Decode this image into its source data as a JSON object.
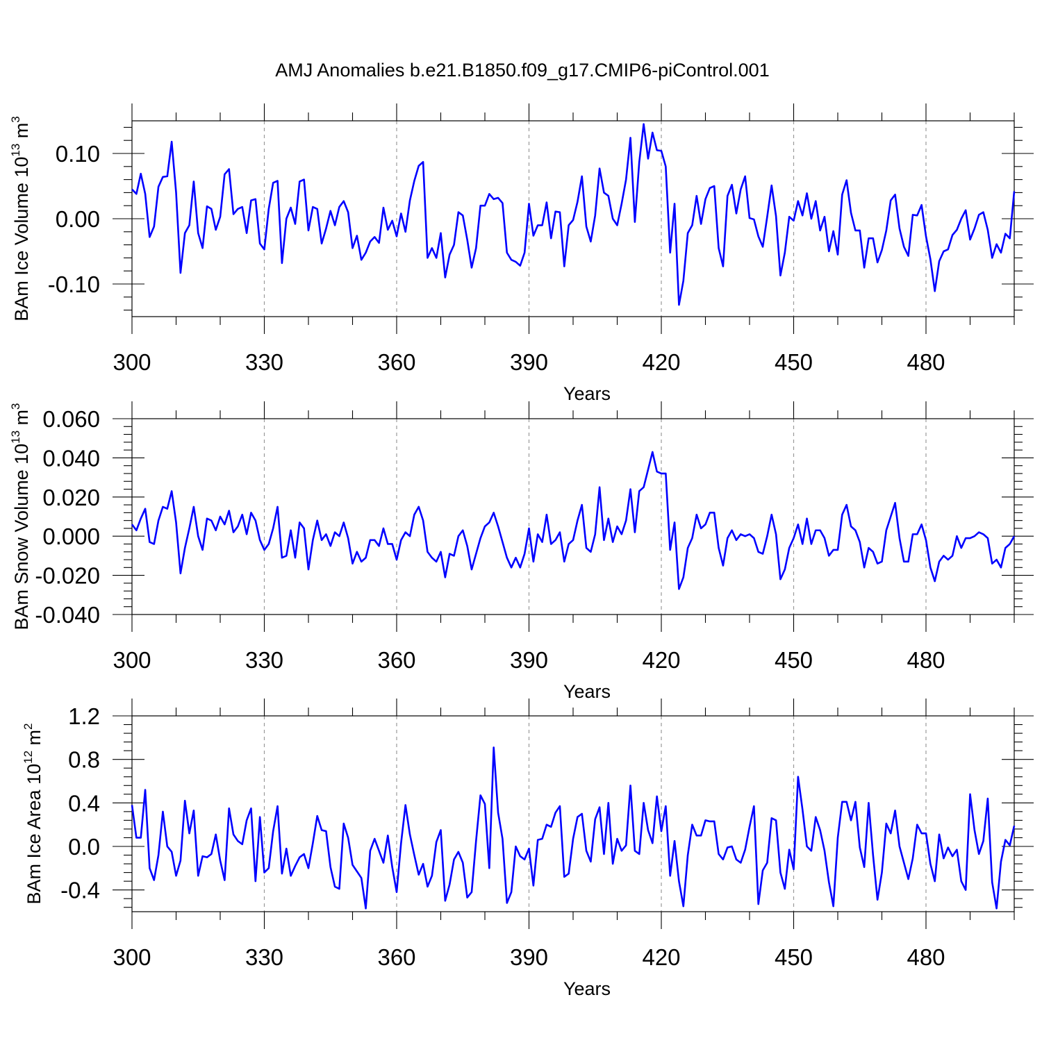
{
  "title": "AMJ Anomalies b.e21.B1850.f09_g17.CMIP6-piControl.001",
  "style": {
    "line_color": "#0000ff",
    "axis_color": "#000000",
    "grid_color": "#999999"
  },
  "chart_data": [
    {
      "type": "line",
      "name_text": "BAm Ice Volume 10",
      "ylabel_base": "BAm Ice Volume 10",
      "ylabel_exp": "13",
      "ylabel_unit": "m",
      "ylabel_unit_exp": "3",
      "xlabel": "Years",
      "xlim": [
        300,
        500
      ],
      "ylim": [
        -0.15,
        0.15
      ],
      "xticks": [
        300,
        330,
        360,
        390,
        420,
        450,
        480
      ],
      "xtick_labels": [
        "300",
        "330",
        "360",
        "390",
        "420",
        "450",
        "480"
      ],
      "yticks": [
        -0.1,
        0.0,
        0.1
      ],
      "ytick_labels": [
        "-0.10",
        "0.00",
        "0.10"
      ],
      "grid": "vertical dashed at major x ticks",
      "series": [
        {
          "x_start": 300,
          "values": [
            0.045,
            0.038,
            0.069,
            0.038,
            -0.028,
            -0.012,
            0.049,
            0.064,
            0.065,
            0.118,
            0.04,
            -0.083,
            -0.022,
            -0.01,
            0.057,
            -0.022,
            -0.045,
            0.019,
            0.015,
            -0.017,
            0.003,
            0.068,
            0.076,
            0.007,
            0.015,
            0.018,
            -0.022,
            0.028,
            0.03,
            -0.038,
            -0.047,
            0.015,
            0.055,
            0.058,
            -0.068,
            0.0,
            0.017,
            -0.008,
            0.057,
            0.06,
            -0.018,
            0.018,
            0.015,
            -0.038,
            -0.015,
            0.012,
            -0.01,
            0.018,
            0.027,
            0.01,
            -0.045,
            -0.026,
            -0.063,
            -0.052,
            -0.035,
            -0.028,
            -0.037,
            0.017,
            -0.017,
            -0.003,
            -0.027,
            0.008,
            -0.02,
            0.028,
            0.058,
            0.081,
            0.087,
            -0.06,
            -0.045,
            -0.06,
            -0.022,
            -0.09,
            -0.055,
            -0.04,
            0.01,
            0.005,
            -0.032,
            -0.075,
            -0.045,
            0.02,
            0.02,
            0.038,
            0.03,
            0.032,
            0.024,
            -0.052,
            -0.063,
            -0.066,
            -0.072,
            -0.052,
            0.023,
            -0.026,
            -0.01,
            -0.01,
            0.025,
            -0.03,
            0.011,
            0.01,
            -0.073,
            -0.01,
            -0.002,
            0.026,
            0.065,
            -0.012,
            -0.035,
            0.005,
            0.077,
            0.04,
            0.035,
            0.0,
            -0.01,
            0.023,
            0.06,
            0.124,
            -0.005,
            0.087,
            0.145,
            0.092,
            0.132,
            0.105,
            0.104,
            0.08,
            -0.052,
            0.023,
            -0.132,
            -0.095,
            -0.022,
            -0.01,
            0.035,
            -0.008,
            0.03,
            0.047,
            0.05,
            -0.045,
            -0.073,
            0.035,
            0.052,
            0.008,
            0.045,
            0.065,
            0.001,
            -0.001,
            -0.027,
            -0.043,
            0.003,
            0.051,
            0.004,
            -0.087,
            -0.052,
            0.003,
            -0.003,
            0.027,
            0.005,
            0.039,
            0.0,
            0.027,
            -0.018,
            0.003,
            -0.05,
            -0.019,
            -0.055,
            0.037,
            0.059,
            0.009,
            -0.018,
            -0.018,
            -0.075,
            -0.03,
            -0.03,
            -0.067,
            -0.048,
            -0.018,
            0.028,
            0.037,
            -0.015,
            -0.043,
            -0.057,
            0.006,
            0.005,
            0.021,
            -0.027,
            -0.062,
            -0.111,
            -0.065,
            -0.05,
            -0.047,
            -0.025,
            -0.017,
            0.0,
            0.013,
            -0.032,
            -0.015,
            0.006,
            0.01,
            -0.017,
            -0.06,
            -0.039,
            -0.052,
            -0.023,
            -0.03,
            0.042
          ]
        }
      ]
    },
    {
      "type": "line",
      "ylabel_base": "BAm Snow Volume 10",
      "ylabel_exp": "13",
      "ylabel_unit": "m",
      "ylabel_unit_exp": "3",
      "xlabel": "Years",
      "xlim": [
        300,
        500
      ],
      "ylim": [
        -0.04,
        0.06
      ],
      "xticks": [
        300,
        330,
        360,
        390,
        420,
        450,
        480
      ],
      "xtick_labels": [
        "300",
        "330",
        "360",
        "390",
        "420",
        "450",
        "480"
      ],
      "yticks": [
        -0.04,
        -0.02,
        0.0,
        0.02,
        0.04,
        0.06
      ],
      "ytick_labels": [
        "-0.040",
        "-0.020",
        "0.000",
        "0.020",
        "0.040",
        "0.060"
      ],
      "grid": "vertical dashed at major x ticks",
      "series": [
        {
          "x_start": 300,
          "values": [
            0.006,
            0.003,
            0.009,
            0.014,
            -0.003,
            -0.004,
            0.008,
            0.015,
            0.014,
            0.023,
            0.007,
            -0.019,
            -0.006,
            0.004,
            0.015,
            0.0,
            -0.007,
            0.009,
            0.008,
            0.003,
            0.01,
            0.006,
            0.013,
            0.002,
            0.005,
            0.011,
            0.001,
            0.012,
            0.008,
            -0.002,
            -0.007,
            -0.004,
            0.004,
            0.015,
            -0.011,
            -0.01,
            0.003,
            -0.011,
            0.007,
            0.004,
            -0.017,
            -0.002,
            0.008,
            -0.002,
            0.001,
            -0.005,
            0.002,
            0.0,
            0.007,
            -0.001,
            -0.014,
            -0.008,
            -0.013,
            -0.011,
            -0.002,
            -0.002,
            -0.005,
            0.004,
            -0.004,
            -0.004,
            -0.012,
            -0.002,
            0.002,
            0.0,
            0.011,
            0.015,
            0.008,
            -0.008,
            -0.011,
            -0.013,
            -0.008,
            -0.021,
            -0.009,
            -0.01,
            0.0,
            0.003,
            -0.005,
            -0.017,
            -0.009,
            -0.001,
            0.005,
            0.007,
            0.012,
            0.005,
            -0.003,
            -0.011,
            -0.016,
            -0.011,
            -0.016,
            -0.009,
            0.004,
            -0.013,
            0.001,
            -0.003,
            0.011,
            -0.004,
            -0.002,
            0.002,
            -0.013,
            -0.004,
            -0.002,
            0.008,
            0.016,
            -0.006,
            -0.008,
            0.001,
            0.025,
            -0.002,
            0.009,
            -0.003,
            0.005,
            0.001,
            0.008,
            0.024,
            0.002,
            0.023,
            0.025,
            0.034,
            0.043,
            0.033,
            0.032,
            0.032,
            -0.007,
            0.007,
            -0.027,
            -0.021,
            -0.006,
            -0.001,
            0.011,
            0.004,
            0.006,
            0.012,
            0.012,
            -0.006,
            -0.015,
            -0.001,
            0.003,
            -0.002,
            0.001,
            0.0,
            0.001,
            -0.001,
            -0.008,
            -0.009,
            0.0,
            0.011,
            0.001,
            -0.022,
            -0.017,
            -0.006,
            -0.001,
            0.006,
            -0.004,
            0.009,
            -0.004,
            0.003,
            0.003,
            -0.001,
            -0.01,
            -0.007,
            -0.007,
            0.011,
            0.016,
            0.005,
            0.003,
            -0.003,
            -0.016,
            -0.006,
            -0.008,
            -0.014,
            -0.013,
            0.003,
            0.01,
            0.017,
            -0.001,
            -0.013,
            -0.013,
            0.001,
            0.001,
            0.006,
            -0.002,
            -0.016,
            -0.023,
            -0.013,
            -0.01,
            -0.012,
            -0.01,
            0.0,
            -0.006,
            -0.001,
            -0.001,
            0.0,
            0.002,
            0.001,
            -0.001,
            -0.014,
            -0.012,
            -0.016,
            -0.006,
            -0.004,
            0.0
          ]
        }
      ]
    },
    {
      "type": "line",
      "ylabel_base": "BAm Ice Area 10",
      "ylabel_exp": "12",
      "ylabel_unit": "m",
      "ylabel_unit_exp": "2",
      "xlabel": "Years",
      "xlim": [
        300,
        500
      ],
      "ylim": [
        -0.6,
        1.2
      ],
      "xticks": [
        300,
        330,
        360,
        390,
        420,
        450,
        480
      ],
      "xtick_labels": [
        "300",
        "330",
        "360",
        "390",
        "420",
        "450",
        "480"
      ],
      "yticks": [
        -0.4,
        0.0,
        0.4,
        0.8,
        1.2
      ],
      "ytick_labels": [
        "-0.4",
        "0.0",
        "0.4",
        "0.8",
        "1.2"
      ],
      "grid": "vertical dashed at major x ticks",
      "series": [
        {
          "x_start": 300,
          "values": [
            0.38,
            0.08,
            0.08,
            0.52,
            -0.2,
            -0.31,
            -0.08,
            0.32,
            0.0,
            -0.05,
            -0.27,
            -0.13,
            0.42,
            0.12,
            0.33,
            -0.27,
            -0.09,
            -0.1,
            -0.07,
            0.11,
            -0.13,
            -0.31,
            0.35,
            0.11,
            0.05,
            0.02,
            0.24,
            0.35,
            -0.32,
            0.27,
            -0.24,
            -0.2,
            0.14,
            0.37,
            -0.25,
            -0.02,
            -0.27,
            -0.18,
            -0.1,
            -0.07,
            -0.2,
            0.03,
            0.28,
            0.15,
            0.14,
            -0.19,
            -0.37,
            -0.39,
            0.21,
            0.08,
            -0.17,
            -0.23,
            -0.29,
            -0.57,
            -0.04,
            0.07,
            -0.04,
            -0.15,
            0.1,
            -0.19,
            -0.42,
            0.03,
            0.38,
            0.11,
            -0.08,
            -0.26,
            -0.16,
            -0.37,
            -0.27,
            0.04,
            0.15,
            -0.5,
            -0.35,
            -0.12,
            -0.05,
            -0.15,
            -0.47,
            -0.42,
            0.05,
            0.47,
            0.39,
            -0.2,
            0.91,
            0.31,
            0.07,
            -0.52,
            -0.42,
            0.0,
            -0.09,
            -0.12,
            -0.02,
            -0.36,
            0.06,
            0.07,
            0.2,
            0.18,
            0.31,
            0.37,
            -0.28,
            -0.25,
            0.07,
            0.27,
            0.3,
            -0.04,
            -0.14,
            0.25,
            0.36,
            -0.07,
            0.4,
            -0.16,
            0.07,
            -0.04,
            0.01,
            0.56,
            -0.04,
            -0.07,
            0.4,
            0.15,
            0.03,
            0.46,
            0.14,
            0.37,
            -0.27,
            0.05,
            -0.32,
            -0.55,
            -0.08,
            0.2,
            0.1,
            0.1,
            0.24,
            0.23,
            0.23,
            -0.07,
            -0.12,
            -0.01,
            0.0,
            -0.12,
            -0.15,
            -0.03,
            0.18,
            0.37,
            -0.53,
            -0.22,
            -0.15,
            0.26,
            0.24,
            -0.24,
            -0.39,
            -0.03,
            -0.21,
            0.64,
            0.34,
            0.0,
            -0.04,
            0.27,
            0.15,
            -0.04,
            -0.33,
            -0.55,
            0.08,
            0.41,
            0.41,
            0.24,
            0.41,
            -0.01,
            -0.19,
            0.4,
            -0.08,
            -0.49,
            -0.24,
            0.21,
            0.12,
            0.33,
            0.0,
            -0.15,
            -0.3,
            -0.11,
            0.2,
            0.12,
            0.12,
            -0.16,
            -0.32,
            0.11,
            -0.11,
            -0.01,
            -0.09,
            -0.03,
            -0.32,
            -0.4,
            0.48,
            0.15,
            -0.07,
            0.05,
            0.44,
            -0.33,
            -0.57,
            -0.14,
            0.06,
            0.01,
            0.19
          ]
        }
      ]
    }
  ]
}
